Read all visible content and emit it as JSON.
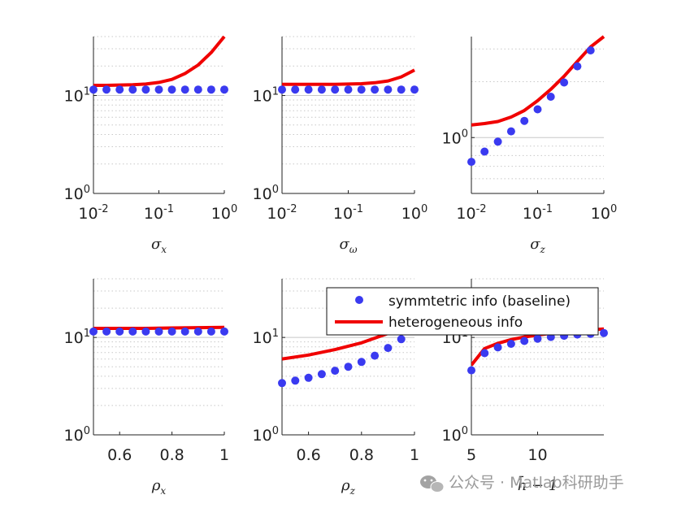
{
  "chart_data": {
    "type": "multi-panel",
    "legend": {
      "placement": "overlapping bottom-right panels",
      "entries": [
        {
          "label": "symmtetric info (baseline)",
          "style": "marker",
          "color": "#3a3af0"
        },
        {
          "label": "heterogeneous info",
          "style": "line",
          "color": "#f00000"
        }
      ]
    },
    "colors": {
      "baseline": "#3a3af0",
      "heterogeneous": "#f00000",
      "axis": "#222222",
      "grid": "#c8c8c8"
    },
    "panels": [
      {
        "id": "sigma-x",
        "xlabel_symbol": "σ",
        "xlabel_sub": "x",
        "xscale": "log",
        "xlim": [
          0.01,
          1
        ],
        "yscale": "log",
        "ylim": [
          1,
          40
        ],
        "xticks": [
          {
            "base": "10",
            "exp": "-2"
          },
          {
            "base": "10",
            "exp": "-1"
          },
          {
            "base": "10",
            "exp": "0"
          }
        ],
        "yticks": [
          {
            "base": "10",
            "exp": "1"
          },
          {
            "base": "10",
            "exp": "0"
          }
        ],
        "series": [
          {
            "name": "symmtetric info (baseline)",
            "x": [
              0.01,
              0.0158,
              0.0251,
              0.0398,
              0.0631,
              0.1,
              0.158,
              0.251,
              0.398,
              0.631,
              1.0
            ],
            "y": [
              11.5,
              11.5,
              11.5,
              11.5,
              11.5,
              11.5,
              11.5,
              11.5,
              11.5,
              11.5,
              11.5
            ]
          },
          {
            "name": "heterogeneous info",
            "x": [
              0.01,
              0.0158,
              0.0251,
              0.0398,
              0.0631,
              0.1,
              0.158,
              0.251,
              0.398,
              0.631,
              1.0
            ],
            "y": [
              12.7,
              12.7,
              12.8,
              12.9,
              13.1,
              13.6,
              14.6,
              16.8,
              20.5,
              27.5,
              40.0
            ]
          }
        ]
      },
      {
        "id": "sigma-omega",
        "xlabel_symbol": "σ",
        "xlabel_sub": "ω",
        "xscale": "log",
        "xlim": [
          0.01,
          1
        ],
        "yscale": "log",
        "ylim": [
          1,
          40
        ],
        "xticks": [
          {
            "base": "10",
            "exp": "-2"
          },
          {
            "base": "10",
            "exp": "-1"
          },
          {
            "base": "10",
            "exp": "0"
          }
        ],
        "yticks": [
          {
            "base": "10",
            "exp": "1"
          },
          {
            "base": "10",
            "exp": "0"
          }
        ],
        "series": [
          {
            "name": "symmtetric info (baseline)",
            "x": [
              0.01,
              0.0158,
              0.0251,
              0.0398,
              0.0631,
              0.1,
              0.158,
              0.251,
              0.398,
              0.631,
              1.0
            ],
            "y": [
              11.5,
              11.5,
              11.5,
              11.5,
              11.5,
              11.5,
              11.5,
              11.5,
              11.5,
              11.5,
              11.5
            ]
          },
          {
            "name": "heterogeneous info",
            "x": [
              0.01,
              0.0158,
              0.0251,
              0.0398,
              0.0631,
              0.1,
              0.158,
              0.251,
              0.398,
              0.631,
              1.0
            ],
            "y": [
              13.0,
              13.0,
              13.0,
              13.0,
              13.0,
              13.1,
              13.2,
              13.5,
              14.1,
              15.5,
              18.2
            ]
          }
        ]
      },
      {
        "id": "sigma-z",
        "xlabel_symbol": "σ",
        "xlabel_sub": "z",
        "xscale": "log",
        "xlim": [
          0.01,
          1
        ],
        "yscale": "log",
        "ylim": [
          0.5,
          3.5
        ],
        "xticks": [
          {
            "base": "10",
            "exp": "-2"
          },
          {
            "base": "10",
            "exp": "-1"
          },
          {
            "base": "10",
            "exp": "0"
          }
        ],
        "yticks": [
          {
            "base": "10",
            "exp": "0"
          }
        ],
        "series": [
          {
            "name": "symmtetric info (baseline)",
            "x": [
              0.01,
              0.0158,
              0.0251,
              0.0398,
              0.0631,
              0.1,
              0.158,
              0.251,
              0.398,
              0.631
            ],
            "y": [
              0.74,
              0.84,
              0.95,
              1.08,
              1.23,
              1.42,
              1.66,
              1.98,
              2.42,
              2.95
            ]
          },
          {
            "name": "heterogeneous info",
            "x": [
              0.01,
              0.0158,
              0.0251,
              0.0398,
              0.0631,
              0.1,
              0.158,
              0.251,
              0.398,
              0.631,
              1.0
            ],
            "y": [
              1.17,
              1.19,
              1.22,
              1.29,
              1.4,
              1.58,
              1.82,
              2.14,
              2.57,
              3.08,
              3.5
            ]
          }
        ]
      },
      {
        "id": "rho-x",
        "xlabel_symbol": "ρ",
        "xlabel_sub": "x",
        "xscale": "linear",
        "xlim": [
          0.5,
          1
        ],
        "yscale": "log",
        "ylim": [
          1,
          40
        ],
        "xticks": [
          {
            "label": "0.6",
            "value": 0.6
          },
          {
            "label": "0.8",
            "value": 0.8
          },
          {
            "label": "1",
            "value": 1.0
          }
        ],
        "yticks": [
          {
            "base": "10",
            "exp": "1"
          },
          {
            "base": "10",
            "exp": "0"
          }
        ],
        "series": [
          {
            "name": "symmtetric info (baseline)",
            "x": [
              0.5,
              0.55,
              0.6,
              0.65,
              0.7,
              0.75,
              0.8,
              0.85,
              0.9,
              0.95,
              1.0
            ],
            "y": [
              11.5,
              11.5,
              11.5,
              11.5,
              11.5,
              11.5,
              11.5,
              11.5,
              11.5,
              11.5,
              11.5
            ]
          },
          {
            "name": "heterogeneous info",
            "x": [
              0.5,
              0.6,
              0.7,
              0.8,
              0.9,
              1.0
            ],
            "y": [
              12.4,
              12.4,
              12.4,
              12.5,
              12.6,
              12.7
            ]
          }
        ]
      },
      {
        "id": "rho-z",
        "xlabel_symbol": "ρ",
        "xlabel_sub": "z",
        "xscale": "linear",
        "xlim": [
          0.5,
          1
        ],
        "yscale": "log",
        "ylim": [
          1,
          40
        ],
        "xticks": [
          {
            "label": "0.6",
            "value": 0.6
          },
          {
            "label": "0.8",
            "value": 0.8
          },
          {
            "label": "1",
            "value": 1.0
          }
        ],
        "yticks": [
          {
            "base": "10",
            "exp": "1"
          },
          {
            "base": "10",
            "exp": "0"
          }
        ],
        "series": [
          {
            "name": "symmtetric info (baseline)",
            "x": [
              0.5,
              0.55,
              0.6,
              0.65,
              0.7,
              0.75,
              0.8,
              0.85,
              0.9,
              0.95
            ],
            "y": [
              3.4,
              3.6,
              3.85,
              4.2,
              4.55,
              5.0,
              5.6,
              6.5,
              7.8,
              9.6
            ]
          },
          {
            "name": "heterogeneous info",
            "x": [
              0.5,
              0.6,
              0.7,
              0.8,
              0.9,
              0.95
            ],
            "y": [
              6.0,
              6.6,
              7.5,
              8.8,
              11.0,
              13.0
            ]
          }
        ]
      },
      {
        "id": "hbar",
        "xlabel_text": "h̄ − 1",
        "xscale": "linear",
        "xlim": [
          5,
          15
        ],
        "yscale": "log",
        "ylim": [
          1,
          40
        ],
        "xticks": [
          {
            "label": "5",
            "value": 5
          },
          {
            "label": "10",
            "value": 10
          }
        ],
        "yticks": [
          {
            "base": "10",
            "exp": "1"
          },
          {
            "base": "10",
            "exp": "0"
          }
        ],
        "series": [
          {
            "name": "symmtetric info (baseline)",
            "x": [
              5,
              6,
              7,
              8,
              9,
              10,
              11,
              12,
              13,
              14,
              15
            ],
            "y": [
              4.6,
              6.9,
              7.9,
              8.6,
              9.2,
              9.7,
              10.1,
              10.4,
              10.7,
              10.9,
              11.1
            ]
          },
          {
            "name": "heterogeneous info",
            "x": [
              5,
              6,
              7,
              8,
              9,
              10,
              11,
              12,
              13,
              14,
              15
            ],
            "y": [
              5.2,
              7.7,
              8.7,
              9.5,
              10.1,
              10.6,
              11.0,
              11.4,
              11.7,
              12.0,
              12.2
            ]
          }
        ]
      }
    ]
  },
  "watermark": {
    "text": "公众号 · Matlab科研助手"
  }
}
